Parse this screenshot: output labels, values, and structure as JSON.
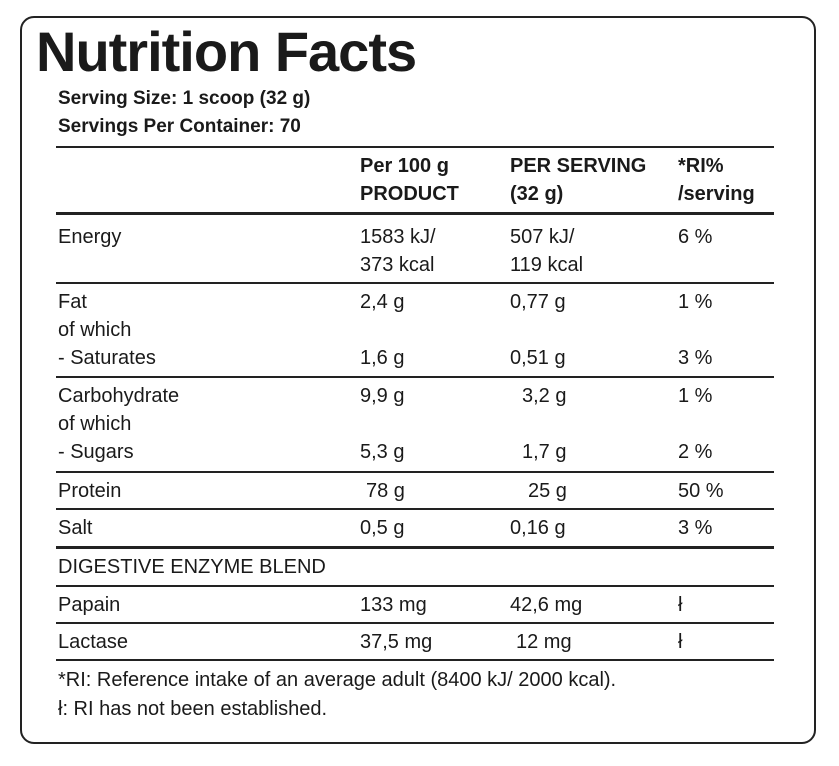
{
  "title": "Nutrition Facts",
  "serving_size": "Serving Size: 1 scoop (32 g)",
  "servings_per_container": "Servings Per Container: 70",
  "headers": {
    "per100_l1": "Per 100 g",
    "per100_l2": "PRODUCT",
    "serving_l1": "PER SERVING",
    "serving_l2": "(32 g)",
    "ri_l1": "*RI%",
    "ri_l2": "/serving"
  },
  "energy": {
    "label": "Energy",
    "per100_kj": "1583 kJ/",
    "per100_kcal": "373 kcal",
    "serving_kj": "507 kJ/",
    "serving_kcal": "119 kcal",
    "ri": "6 %"
  },
  "fat": {
    "label": "Fat",
    "per100": "2,4 g",
    "serving": "0,77 g",
    "ri": "1 %",
    "sub": "of which",
    "sat_label": "- Saturates",
    "sat_per100": "1,6 g",
    "sat_serving": "0,51 g",
    "sat_ri": "3 %"
  },
  "carb": {
    "label": "Carbohydrate",
    "per100": "9,9 g",
    "serving": "3,2 g",
    "ri": "1 %",
    "sub": "of which",
    "sug_label": "- Sugars",
    "sug_per100": "5,3 g",
    "sug_serving": "1,7 g",
    "sug_ri": "2 %"
  },
  "protein": {
    "label": "Protein",
    "per100": "78 g",
    "serving": "25 g",
    "ri": "50 %"
  },
  "salt": {
    "label": "Salt",
    "per100": "0,5 g",
    "serving": "0,16 g",
    "ri": "3 %"
  },
  "enzyme_header": "DIGESTIVE ENZYME BLEND",
  "papain": {
    "label": "Papain",
    "per100": "133 mg",
    "serving": "42,6 mg",
    "ri": "ł"
  },
  "lactase": {
    "label": "Lactase",
    "per100": "37,5 mg",
    "serving": "12 mg",
    "ri": "ł"
  },
  "footnote1": "*RI: Reference intake of an average adult (8400 kJ/ 2000 kcal).",
  "footnote2": "ł: RI has not been established."
}
